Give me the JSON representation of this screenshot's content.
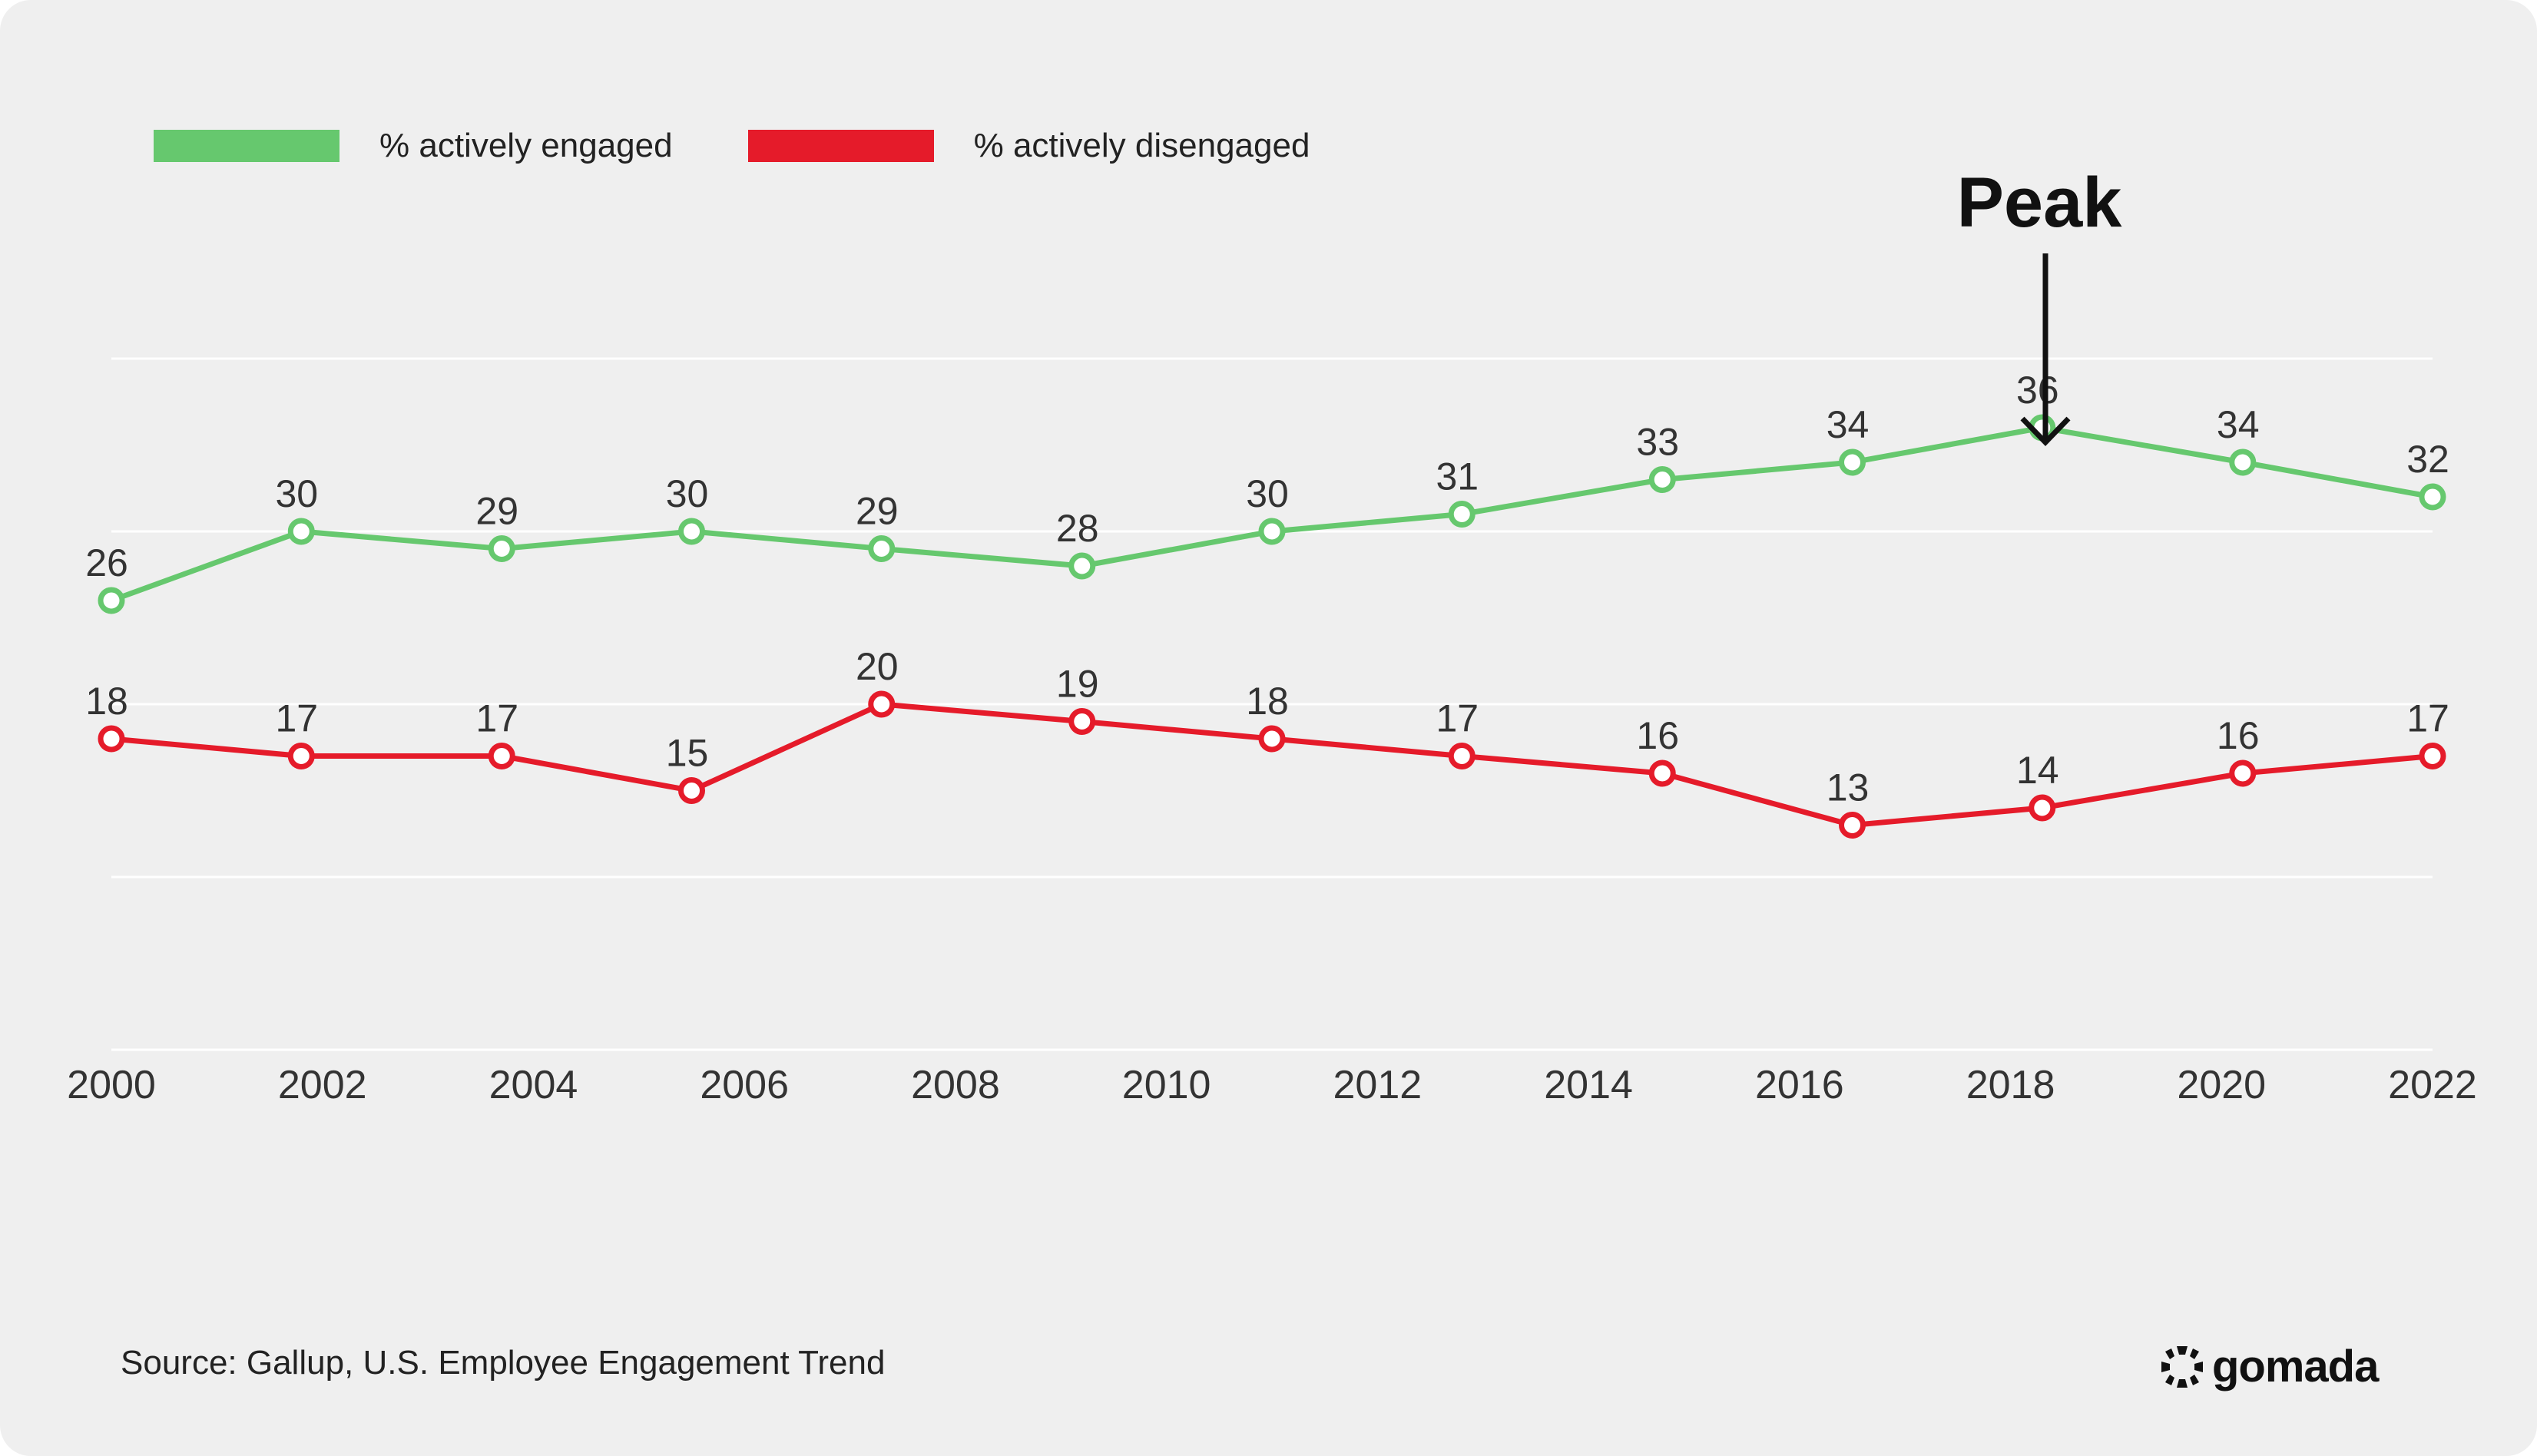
{
  "colors": {
    "background": "#efefef",
    "engaged": "#66c86e",
    "disengaged": "#e51b2a",
    "grid": "#ffffff",
    "text": "#333333"
  },
  "legend": {
    "engaged_label": "% actively engaged",
    "disengaged_label": "% actively disengaged"
  },
  "annotation": {
    "text": "Peak",
    "arrow_icon": "down-arrow-icon",
    "target_year": 2018
  },
  "footer": {
    "source_prefix": "Source: Gallup,",
    "source_title": "U.S. Employee Engagement Trend",
    "logo_icon": "gomada-logo-icon",
    "logo_text": "gomada"
  },
  "chart_data": {
    "type": "line",
    "title": "",
    "xlabel": "",
    "ylabel": "",
    "x_ticks": [
      2000,
      2002,
      2004,
      2006,
      2008,
      2010,
      2012,
      2014,
      2016,
      2018,
      2020,
      2022
    ],
    "ylim": [
      0,
      50
    ],
    "grid": true,
    "legend_position": "top-left",
    "series": [
      {
        "name": "% actively engaged",
        "color": "#66c86e",
        "x": [
          2000,
          2001.8,
          2003.7,
          2005.5,
          2007.3,
          2009.2,
          2011,
          2012.8,
          2014.7,
          2016.5,
          2018.3,
          2020.2,
          2022
        ],
        "values": [
          26,
          30,
          29,
          30,
          29,
          28,
          30,
          31,
          33,
          34,
          36,
          34,
          32
        ]
      },
      {
        "name": "% actively disengaged",
        "color": "#e51b2a",
        "x": [
          2000,
          2001.8,
          2003.7,
          2005.5,
          2007.3,
          2009.2,
          2011,
          2012.8,
          2014.7,
          2016.5,
          2018.3,
          2020.2,
          2022
        ],
        "values": [
          18,
          17,
          17,
          15,
          20,
          19,
          18,
          17,
          16,
          13,
          14,
          16,
          17
        ]
      }
    ]
  }
}
